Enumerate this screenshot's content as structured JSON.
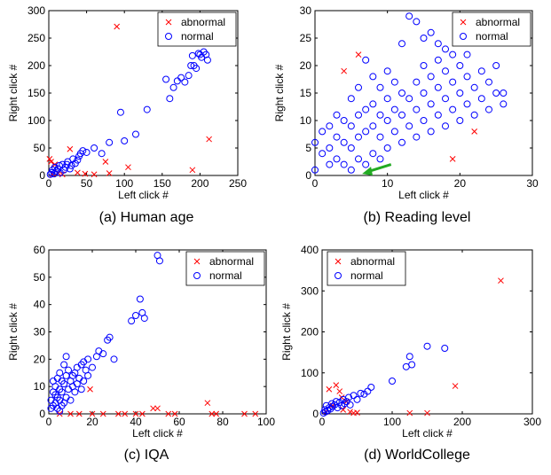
{
  "chart_data": [
    {
      "type": "scatter",
      "caption": "(a) Human age",
      "xlabel": "Left click #",
      "ylabel": "Right click #",
      "xlim": [
        0,
        250
      ],
      "ylim": [
        0,
        300
      ],
      "xticks": [
        0,
        50,
        100,
        150,
        200,
        250
      ],
      "yticks": [
        0,
        50,
        100,
        150,
        200,
        250,
        300
      ],
      "legend": "top-right",
      "series": [
        {
          "name": "abnormal",
          "marker": "x",
          "color": "#ff0000",
          "x": [
            1,
            3,
            5,
            8,
            12,
            18,
            28,
            38,
            48,
            60,
            75,
            80,
            90,
            105,
            190,
            212
          ],
          "y": [
            30,
            25,
            2,
            20,
            5,
            2,
            48,
            5,
            3,
            2,
            25,
            4,
            271,
            15,
            10,
            66
          ]
        },
        {
          "name": "normal",
          "marker": "o",
          "color": "#0000ff",
          "x": [
            2,
            4,
            5,
            7,
            8,
            10,
            12,
            14,
            15,
            18,
            20,
            22,
            24,
            25,
            28,
            30,
            32,
            35,
            38,
            40,
            42,
            45,
            50,
            60,
            70,
            80,
            95,
            100,
            115,
            130,
            155,
            160,
            165,
            170,
            175,
            180,
            185,
            188,
            190,
            192,
            195,
            198,
            200,
            202,
            205,
            208,
            210
          ],
          "y": [
            2,
            5,
            10,
            3,
            15,
            8,
            12,
            18,
            5,
            20,
            10,
            15,
            20,
            25,
            12,
            18,
            30,
            22,
            28,
            35,
            40,
            45,
            42,
            50,
            40,
            60,
            115,
            63,
            75,
            120,
            175,
            140,
            160,
            172,
            178,
            170,
            182,
            200,
            218,
            200,
            195,
            222,
            220,
            215,
            225,
            220,
            210
          ]
        }
      ]
    },
    {
      "type": "scatter",
      "caption": "(b) Reading level",
      "xlabel": "Left click #",
      "ylabel": "Right click #",
      "xlim": [
        0,
        30
      ],
      "ylim": [
        0,
        30
      ],
      "xticks": [
        0,
        10,
        20,
        30
      ],
      "yticks": [
        0,
        5,
        10,
        15,
        20,
        25,
        30
      ],
      "legend": "top-right",
      "series": [
        {
          "name": "abnormal",
          "marker": "x",
          "color": "#ff0000",
          "x": [
            4,
            6,
            19,
            22
          ],
          "y": [
            19,
            22,
            3,
            8
          ]
        },
        {
          "name": "normal",
          "marker": "o",
          "color": "#0000ff",
          "x": [
            0,
            0,
            1,
            1,
            2,
            2,
            2,
            3,
            3,
            3,
            4,
            4,
            4,
            5,
            5,
            5,
            5,
            6,
            6,
            6,
            6,
            7,
            7,
            7,
            7,
            8,
            8,
            8,
            8,
            9,
            9,
            9,
            9,
            10,
            10,
            10,
            10,
            11,
            11,
            11,
            12,
            12,
            12,
            12,
            13,
            13,
            13,
            14,
            14,
            14,
            14,
            15,
            15,
            15,
            15,
            16,
            16,
            16,
            16,
            17,
            17,
            17,
            17,
            18,
            18,
            18,
            18,
            19,
            19,
            19,
            20,
            20,
            20,
            21,
            21,
            21,
            22,
            22,
            23,
            23,
            24,
            24,
            25,
            25,
            26,
            26
          ],
          "y": [
            1,
            6,
            4,
            8,
            2,
            5,
            9,
            3,
            7,
            11,
            2,
            6,
            10,
            1,
            5,
            9,
            14,
            3,
            7,
            11,
            16,
            2,
            8,
            12,
            21,
            4,
            9,
            13,
            18,
            3,
            7,
            11,
            16,
            5,
            10,
            14,
            19,
            8,
            12,
            17,
            6,
            11,
            15,
            24,
            9,
            14,
            29,
            7,
            12,
            17,
            28,
            10,
            15,
            20,
            25,
            8,
            13,
            18,
            26,
            11,
            16,
            21,
            24,
            9,
            14,
            19,
            23,
            12,
            17,
            22,
            10,
            15,
            20,
            13,
            18,
            22,
            11,
            16,
            14,
            19,
            12,
            17,
            15,
            20,
            13,
            15
          ]
        }
      ]
    },
    {
      "type": "scatter",
      "caption": "(c) IQA",
      "xlabel": "Left click #",
      "ylabel": "Right click #",
      "xlim": [
        0,
        100
      ],
      "ylim": [
        0,
        60
      ],
      "xticks": [
        0,
        20,
        40,
        60,
        80,
        100
      ],
      "yticks": [
        0,
        10,
        20,
        30,
        40,
        50,
        60
      ],
      "legend": "top-right",
      "series": [
        {
          "name": "abnormal",
          "marker": "x",
          "color": "#ff0000",
          "x": [
            5,
            10,
            14,
            20,
            25,
            32,
            35,
            40,
            43,
            48,
            50,
            55,
            58,
            73,
            75,
            77,
            90,
            95
          ],
          "y": [
            0,
            0,
            0,
            0,
            0,
            0,
            0,
            0,
            0,
            2,
            2,
            0,
            0,
            4,
            0,
            0,
            0,
            0
          ],
          "extra": {
            "x": [
              19
            ],
            "y": [
              9
            ]
          }
        },
        {
          "name": "normal",
          "marker": "o",
          "color": "#0000ff",
          "x": [
            1,
            1,
            2,
            2,
            2,
            3,
            3,
            3,
            4,
            4,
            4,
            5,
            5,
            5,
            5,
            6,
            6,
            6,
            7,
            7,
            7,
            8,
            8,
            8,
            9,
            9,
            10,
            10,
            11,
            11,
            12,
            12,
            13,
            13,
            14,
            15,
            15,
            16,
            16,
            17,
            18,
            18,
            20,
            22,
            23,
            25,
            27,
            28,
            30,
            38,
            40,
            42,
            43,
            44,
            50,
            51
          ],
          "y": [
            2,
            5,
            3,
            8,
            12,
            4,
            7,
            10,
            2,
            6,
            13,
            1,
            5,
            9,
            15,
            3,
            8,
            12,
            4,
            11,
            18,
            6,
            14,
            21,
            9,
            16,
            5,
            12,
            10,
            14,
            8,
            15,
            11,
            17,
            13,
            9,
            18,
            12,
            19,
            16,
            14,
            20,
            17,
            21,
            23,
            22,
            27,
            28,
            20,
            34,
            36,
            42,
            37,
            35,
            58,
            56
          ]
        }
      ]
    },
    {
      "type": "scatter",
      "caption": "(d) WorldCollege",
      "xlabel": "Left click #",
      "ylabel": "Right click #",
      "xlim": [
        0,
        300
      ],
      "ylim": [
        0,
        400
      ],
      "xticks": [
        0,
        100,
        200,
        300
      ],
      "yticks": [
        0,
        100,
        200,
        300,
        400
      ],
      "legend": "top-left",
      "series": [
        {
          "name": "abnormal",
          "marker": "x",
          "color": "#ff0000",
          "x": [
            5,
            10,
            15,
            20,
            25,
            28,
            30,
            35,
            40,
            45,
            50,
            125,
            150,
            190,
            255
          ],
          "y": [
            5,
            60,
            20,
            70,
            55,
            40,
            10,
            30,
            5,
            2,
            3,
            2,
            2,
            68,
            325
          ]
        },
        {
          "name": "normal",
          "marker": "o",
          "color": "#0000ff",
          "x": [
            2,
            4,
            5,
            6,
            8,
            10,
            12,
            14,
            15,
            18,
            20,
            22,
            25,
            28,
            30,
            32,
            35,
            38,
            40,
            45,
            50,
            55,
            60,
            65,
            70,
            100,
            120,
            125,
            128,
            150,
            175
          ],
          "y": [
            2,
            10,
            5,
            20,
            8,
            15,
            12,
            25,
            18,
            22,
            30,
            15,
            28,
            20,
            35,
            25,
            30,
            40,
            22,
            45,
            35,
            50,
            48,
            55,
            65,
            80,
            115,
            140,
            120,
            165,
            160
          ]
        }
      ]
    }
  ],
  "annotation": {
    "arrow_color": "#22aa22"
  }
}
